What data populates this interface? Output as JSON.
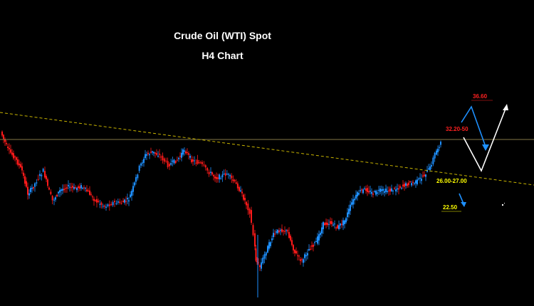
{
  "chart": {
    "title": "Crude Oil (WTI) Spot",
    "subtitle": "H4 Chart",
    "colors": {
      "background": "#000000",
      "bull": "#1e90ff",
      "bear": "#ff1a1a",
      "trendline": "#c8b400",
      "level_line": "#b0a060",
      "arrow_blue": "#1e90ff",
      "arrow_white": "#ffffff",
      "label_red": "#ff2020",
      "label_yellow": "#ffff00"
    }
  },
  "chart_data": {
    "type": "candlestick",
    "title": "Crude Oil (WTI) Spot",
    "subtitle": "H4 Chart",
    "xlabel": "",
    "ylabel": "",
    "grid": false,
    "annotations": [
      {
        "text": "36.60",
        "color": "red"
      },
      {
        "text": "32.20-50",
        "color": "red"
      },
      {
        "text": "26.00-27.00",
        "color": "yellow"
      },
      {
        "text": "22.50",
        "color": "yellow"
      }
    ],
    "trendline": "descending dashed resistance line",
    "horizontal_level": "price level near current high",
    "projection": "blue path up to 36.60, down toward 26.00-27.00; alternate blue path down to 22.50; white path down to trendline then up"
  }
}
